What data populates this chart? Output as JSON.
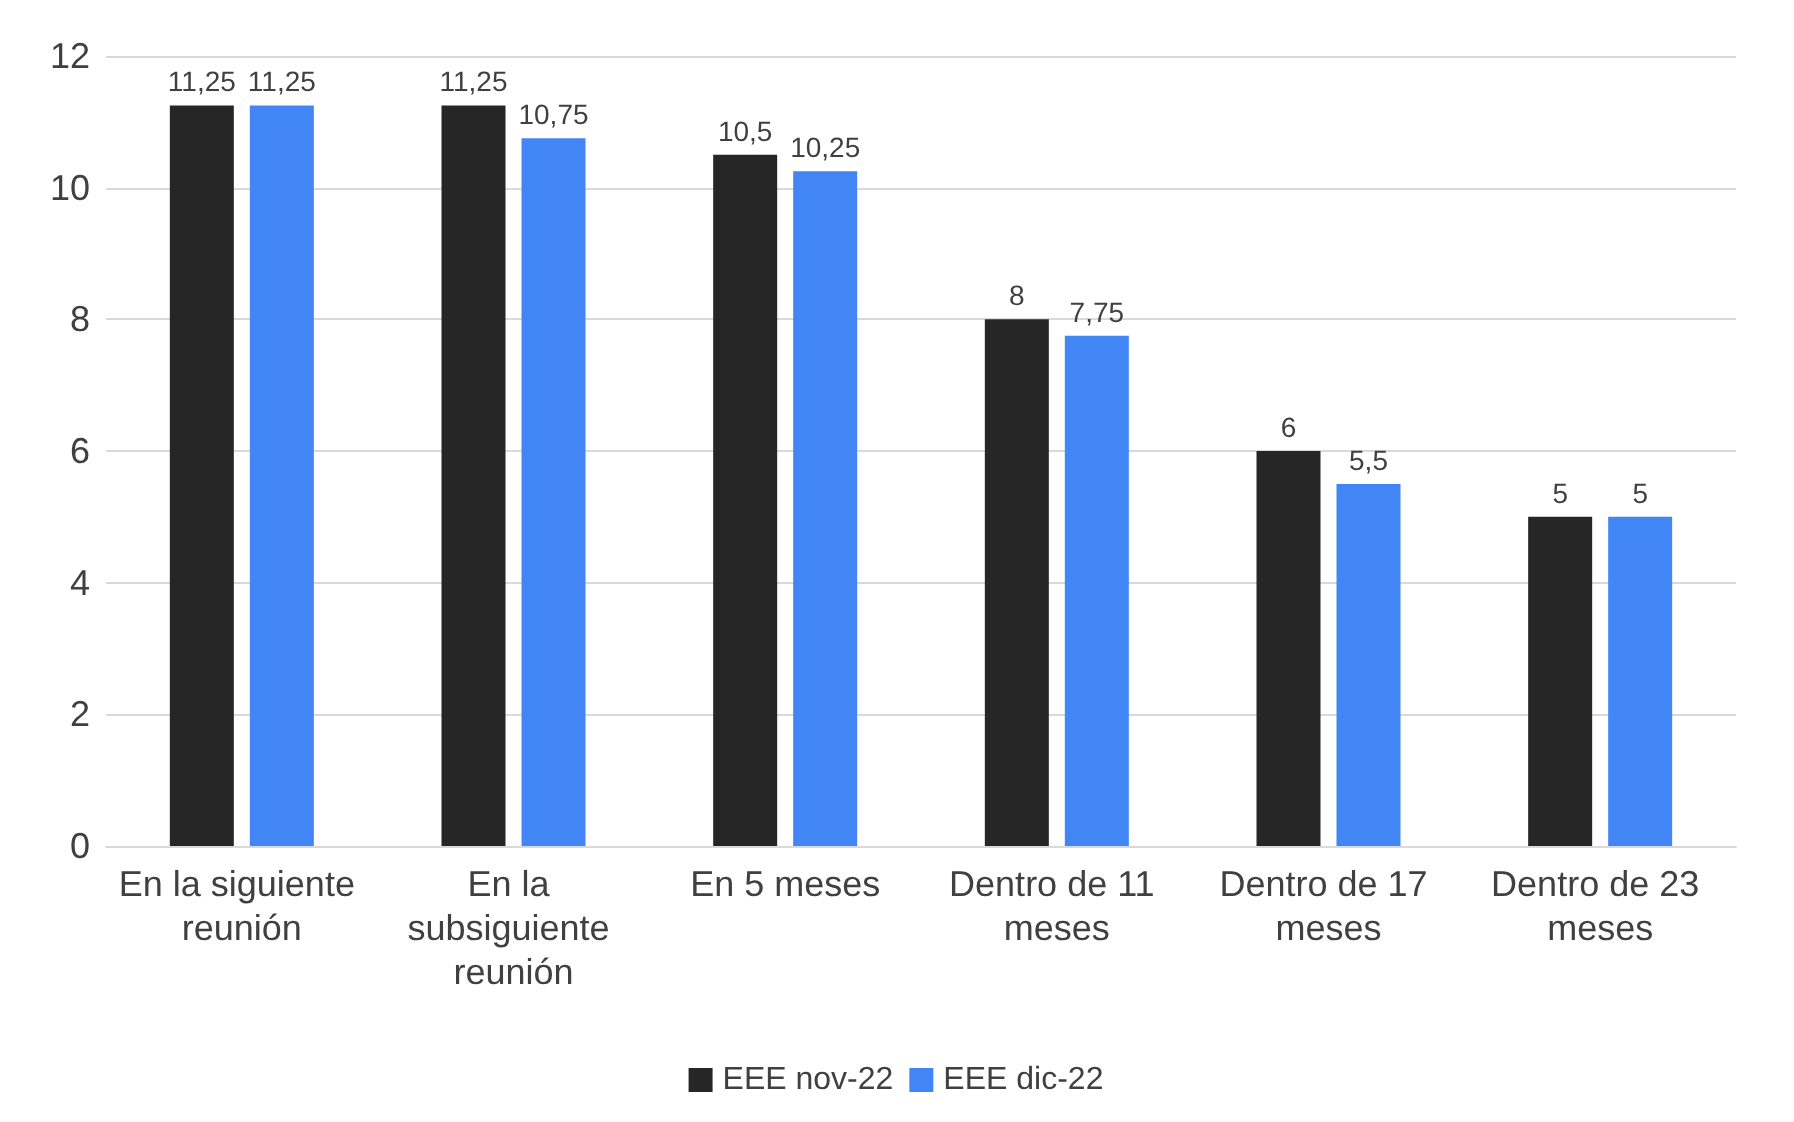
{
  "chart_data": {
    "type": "bar",
    "categories": [
      "En la siguiente reunión",
      "En la subsiguiente reunión",
      "En 5 meses",
      "Dentro de 11 meses",
      "Dentro de 17 meses",
      "Dentro de 23 meses"
    ],
    "series": [
      {
        "name": "EEE nov-22",
        "color": "#262626",
        "values": [
          11.25,
          11.25,
          10.5,
          8,
          6,
          5
        ],
        "value_labels": [
          "11,25",
          "11,25",
          "10,5",
          "8",
          "6",
          "5"
        ]
      },
      {
        "name": "EEE dic-22",
        "color": "#4285f4",
        "values": [
          11.25,
          10.75,
          10.25,
          7.75,
          5.5,
          5
        ],
        "value_labels": [
          "11,25",
          "10,75",
          "10,25",
          "7,75",
          "5,5",
          "5"
        ]
      }
    ],
    "ylim": [
      0,
      12
    ],
    "yticks": [
      0,
      2,
      4,
      6,
      8,
      10,
      12
    ],
    "grid": "y",
    "legend": "bottom"
  }
}
